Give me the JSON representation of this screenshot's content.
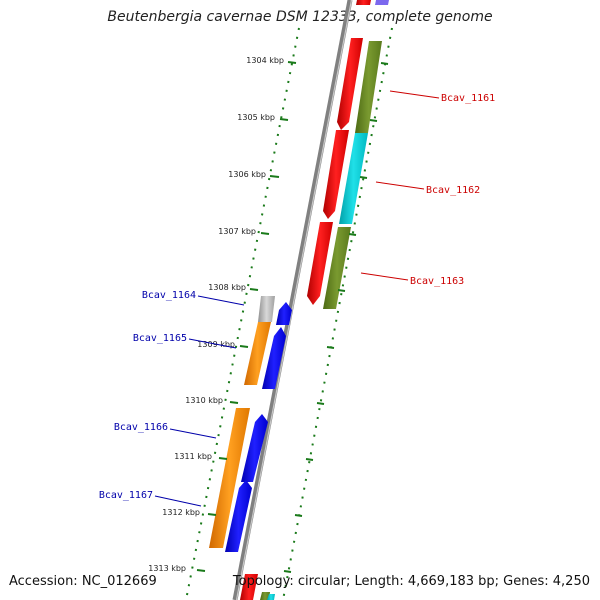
{
  "title": "Beutenbergia cavernae DSM 12333, complete genome",
  "footer": {
    "accession": "Accession: NC_012669",
    "summary": "Topology: circular; Length: 4,669,183 bp; Genes: 4,250"
  },
  "ticks": [
    {
      "label": "1304 kbp"
    },
    {
      "label": "1305 kbp"
    },
    {
      "label": "1306 kbp"
    },
    {
      "label": "1307 kbp"
    },
    {
      "label": "1308 kbp"
    },
    {
      "label": "1309 kbp"
    },
    {
      "label": "1310 kbp"
    },
    {
      "label": "1311 kbp"
    },
    {
      "label": "1312 kbp"
    },
    {
      "label": "1313 kbp"
    }
  ],
  "genes_right": [
    {
      "label": "Bcav_1161"
    },
    {
      "label": "Bcav_1162"
    },
    {
      "label": "Bcav_1163"
    }
  ],
  "genes_left": [
    {
      "label": "Bcav_1164"
    },
    {
      "label": "Bcav_1165"
    },
    {
      "label": "Bcav_1166"
    },
    {
      "label": "Bcav_1167"
    }
  ],
  "colors": {
    "gene_red": "#ff0000",
    "olive": "#6b8e23",
    "cyan": "#00ced1",
    "orange": "#ff8c00",
    "blue": "#0000ff",
    "gray": "#b0b0b0",
    "right_label": "#cc0000",
    "left_label": "#0000aa",
    "tick_green": "#1a7a1a",
    "backbone": "#808080"
  }
}
